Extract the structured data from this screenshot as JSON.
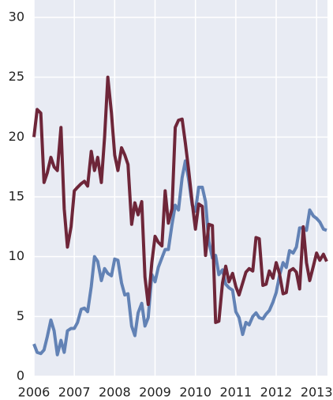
{
  "chart_data": {
    "type": "line",
    "x": [
      2006,
      2006.08,
      2006.17,
      2006.25,
      2006.33,
      2006.42,
      2006.5,
      2006.58,
      2006.67,
      2006.75,
      2006.83,
      2006.92,
      2007,
      2007.08,
      2007.17,
      2007.25,
      2007.33,
      2007.42,
      2007.5,
      2007.58,
      2007.67,
      2007.75,
      2007.83,
      2007.92,
      2008,
      2008.08,
      2008.17,
      2008.25,
      2008.33,
      2008.42,
      2008.5,
      2008.58,
      2008.67,
      2008.75,
      2008.83,
      2008.92,
      2009,
      2009.08,
      2009.17,
      2009.25,
      2009.33,
      2009.42,
      2009.5,
      2009.58,
      2009.67,
      2009.75,
      2009.83,
      2009.92,
      2010,
      2010.08,
      2010.17,
      2010.25,
      2010.33,
      2010.42,
      2010.5,
      2010.58,
      2010.67,
      2010.75,
      2010.83,
      2010.92,
      2011,
      2011.08,
      2011.17,
      2011.25,
      2011.33,
      2011.42,
      2011.5,
      2011.58,
      2011.67,
      2011.75,
      2011.83,
      2011.92,
      2012,
      2012.08,
      2012.17,
      2012.25,
      2012.33,
      2012.42,
      2012.5,
      2012.58,
      2012.67,
      2012.75,
      2012.83,
      2012.92,
      2013,
      2013.08,
      2013.17,
      2013.25
    ],
    "series": [
      {
        "color": "#6282b5",
        "values": [
          2.7,
          2.0,
          1.9,
          2.2,
          3.3,
          4.7,
          3.8,
          1.8,
          3.0,
          2.0,
          3.8,
          4.0,
          4.0,
          4.5,
          5.6,
          5.7,
          5.4,
          7.5,
          10,
          9.6,
          8.0,
          9.0,
          8.6,
          8.4,
          9.8,
          9.7,
          7.8,
          6.8,
          6.9,
          4.2,
          3.4,
          5.3,
          6.1,
          4.2,
          4.9,
          8.5,
          7.9,
          9.1,
          9.9,
          10.6,
          10.6,
          12.7,
          14.3,
          13.9,
          16.6,
          18,
          16.5,
          14.3,
          13.8,
          15.8,
          15.8,
          14.6,
          11.3,
          9.9,
          10.1,
          8.5,
          8.9,
          7.7,
          7.4,
          7.2,
          5.4,
          4.9,
          3.5,
          4.5,
          4.3,
          5.0,
          5.3,
          4.9,
          4.8,
          5.2,
          5.5,
          6.2,
          7.0,
          8.4,
          9.5,
          9.1,
          10.5,
          10.3,
          10.8,
          12.4,
          12.4,
          12.2,
          13.9,
          13.4,
          13.2,
          12.9,
          12.3,
          12.2
        ]
      },
      {
        "color": "#6e2639",
        "values": [
          20,
          22.3,
          22,
          16.2,
          17,
          18.3,
          17.5,
          17.2,
          20.8,
          14,
          10.8,
          12.5,
          15.5,
          15.8,
          16.1,
          16.3,
          15.9,
          18.8,
          17.2,
          18.3,
          16.2,
          20,
          25,
          22,
          18.5,
          17.2,
          19.1,
          18.5,
          17.7,
          12.7,
          14.5,
          13.5,
          14.6,
          8.3,
          6,
          9.5,
          11.7,
          11.2,
          10.9,
          15.5,
          12.8,
          14,
          20.8,
          21.4,
          21.5,
          19.5,
          17.3,
          14.5,
          12.3,
          14.4,
          14.2,
          10.1,
          12.7,
          12.6,
          4.5,
          4.6,
          7.8,
          9.2,
          7.9,
          8.6,
          7.5,
          6.8,
          7.8,
          8.7,
          9,
          8.8,
          11.6,
          11.5,
          7.6,
          7.7,
          8.8,
          8.2,
          9.5,
          8.6,
          6.9,
          7,
          8.8,
          9,
          8.7,
          7.3,
          12.5,
          9.5,
          8,
          9.2,
          10.3,
          9.7,
          10.2,
          9.6
        ]
      }
    ],
    "xlim": [
      2006,
      2013.27
    ],
    "xticks": [
      2006,
      2007,
      2008,
      2009,
      2010,
      2011,
      2012,
      2013
    ],
    "ylim": [
      0,
      30
    ],
    "yticks": [
      0,
      5,
      10,
      15,
      20,
      25,
      30
    ],
    "grid": true
  }
}
